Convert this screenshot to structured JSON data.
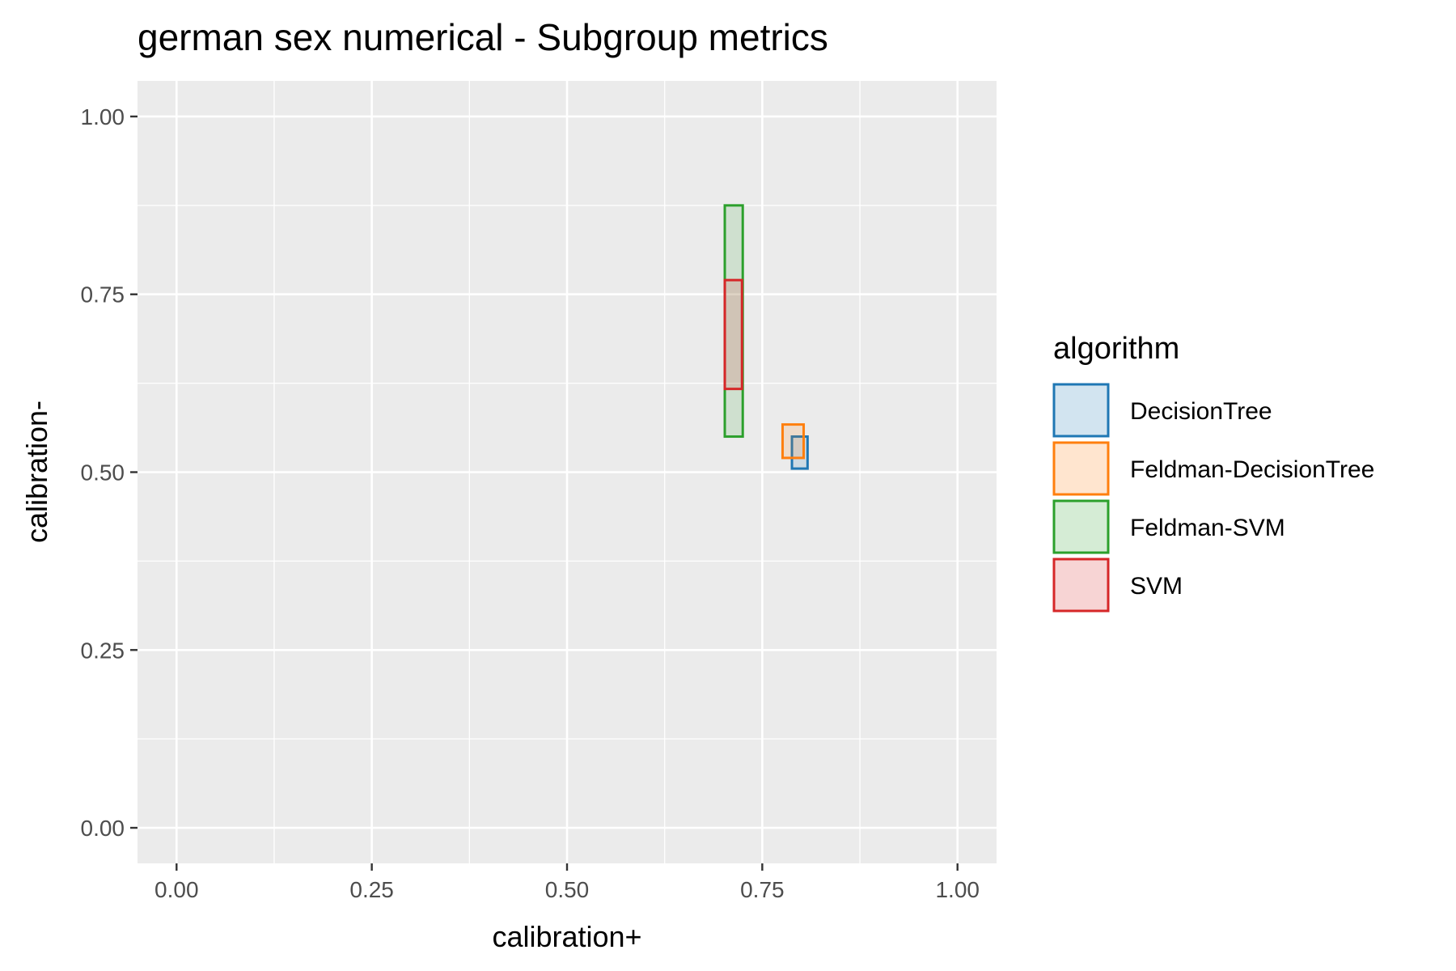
{
  "chart_data": {
    "type": "rect",
    "title": "german sex numerical - Subgroup metrics",
    "xlabel": "calibration+",
    "ylabel": "calibration-",
    "xlim": [
      -0.05,
      1.05
    ],
    "ylim": [
      -0.05,
      1.05
    ],
    "x_ticks": [
      0,
      0.25,
      0.5,
      0.75,
      1
    ],
    "x_tick_labels": [
      "0.00",
      "0.25",
      "0.50",
      "0.75",
      "1.00"
    ],
    "y_ticks": [
      0,
      0.25,
      0.5,
      0.75,
      1
    ],
    "y_tick_labels": [
      "0.00",
      "0.25",
      "0.50",
      "0.75",
      "1.00"
    ],
    "grid": true,
    "legend": {
      "title": "algorithm",
      "position": "right"
    },
    "series": [
      {
        "name": "DecisionTree",
        "color": "#1f77b4",
        "xmin": 0.788,
        "xmax": 0.808,
        "ymin": 0.505,
        "ymax": 0.55
      },
      {
        "name": "Feldman-DecisionTree",
        "color": "#ff7f0e",
        "xmin": 0.776,
        "xmax": 0.803,
        "ymin": 0.52,
        "ymax": 0.567
      },
      {
        "name": "Feldman-SVM",
        "color": "#2ca02c",
        "xmin": 0.702,
        "xmax": 0.725,
        "ymin": 0.55,
        "ymax": 0.875
      },
      {
        "name": "SVM",
        "color": "#d62728",
        "xmin": 0.702,
        "xmax": 0.724,
        "ymin": 0.617,
        "ymax": 0.77
      }
    ]
  }
}
